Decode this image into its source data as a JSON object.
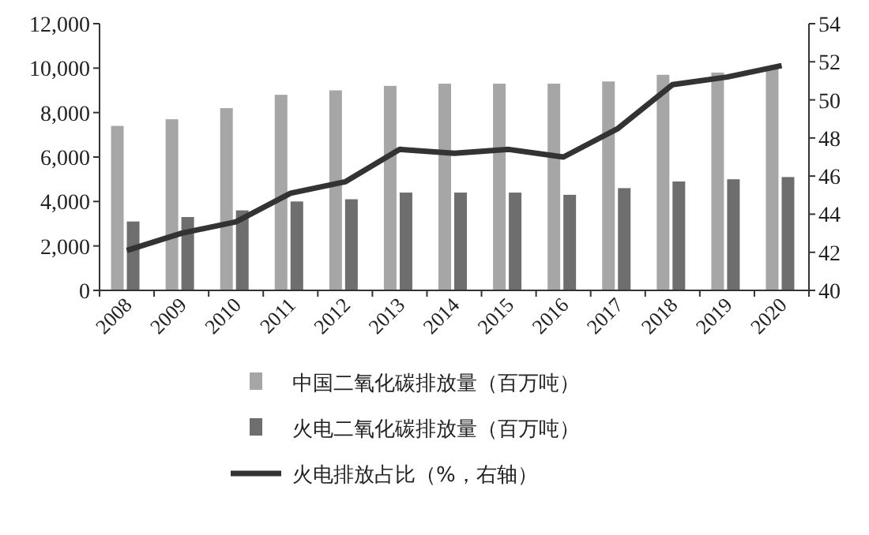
{
  "chart_data": {
    "type": "bar",
    "categories": [
      "2008",
      "2009",
      "2010",
      "2011",
      "2012",
      "2013",
      "2014",
      "2015",
      "2016",
      "2017",
      "2018",
      "2019",
      "2020"
    ],
    "series": [
      {
        "name": "中国二氧化碳排放量（百万吨）",
        "color": "#a6a6a6",
        "values": [
          7400,
          7700,
          8200,
          8800,
          9000,
          9200,
          9300,
          9300,
          9300,
          9400,
          9700,
          9800,
          10000
        ]
      },
      {
        "name": "火电二氧化碳排放量（百万吨）",
        "color": "#6e6e6e",
        "values": [
          3100,
          3300,
          3600,
          4000,
          4100,
          4400,
          4400,
          4400,
          4300,
          4600,
          4900,
          5000,
          5100
        ]
      },
      {
        "name": "火电排放占比（%，右轴）",
        "type": "line",
        "axis": "y2",
        "color": "#333333",
        "values": [
          42.1,
          43.0,
          43.6,
          45.1,
          45.7,
          47.4,
          47.2,
          47.4,
          47.0,
          48.5,
          50.8,
          51.2,
          51.8
        ]
      }
    ],
    "ylim": [
      0,
      12000
    ],
    "yticks": [
      0,
      {
        "value": 2000,
        "label": "2,000"
      },
      {
        "value": 4000,
        "label": "4,000"
      },
      {
        "value": 6000,
        "label": "6,000"
      },
      {
        "value": 8000,
        "label": "8,000"
      },
      {
        "value": 10000,
        "label": "10,000"
      },
      {
        "value": 12000,
        "label": "12,000"
      }
    ],
    "y2lim": [
      40,
      54
    ],
    "y2ticks": [
      40,
      42,
      44,
      46,
      48,
      50,
      52,
      54
    ],
    "grid": false,
    "legend": "bottom",
    "marker": "none",
    "line_style": "solid"
  }
}
